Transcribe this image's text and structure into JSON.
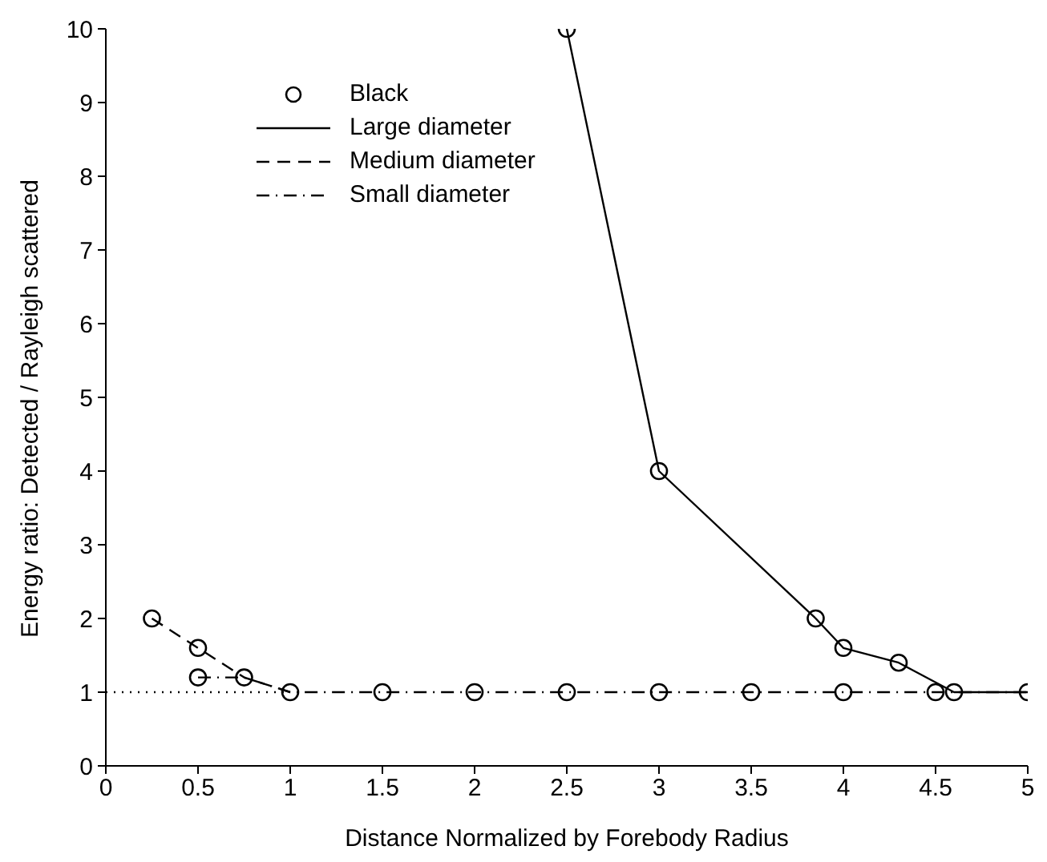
{
  "chart_data": {
    "type": "line",
    "xlabel": "Distance Normalized by Forebody Radius",
    "ylabel": "Energy ratio: Detected / Rayleigh scattered",
    "xlim": [
      0,
      5
    ],
    "ylim": [
      0,
      10
    ],
    "xticks": [
      0,
      0.5,
      1,
      1.5,
      2,
      2.5,
      3,
      3.5,
      4,
      4.5,
      5
    ],
    "yticks": [
      0,
      1,
      2,
      3,
      4,
      5,
      6,
      7,
      8,
      9,
      10
    ],
    "legend": "top left",
    "grid": false,
    "series": [
      {
        "name": "Black",
        "type": "scatter",
        "marker": "circle",
        "color": "#000000",
        "x": [
          0.25,
          0.5,
          0.5,
          0.75,
          1,
          1.5,
          2,
          2.5,
          3,
          3.5,
          4,
          4.5,
          4.6,
          5,
          2.5,
          3,
          3.85,
          4,
          4.3
        ],
        "values": [
          2,
          1.6,
          1.2,
          1.2,
          1,
          1,
          1,
          1,
          1,
          1,
          1,
          1,
          1,
          1,
          10,
          4,
          2,
          1.6,
          1.4
        ]
      },
      {
        "name": "Large diameter",
        "type": "line",
        "line_style": "solid",
        "color": "#000000",
        "x": [
          2.5,
          3,
          3.85,
          4,
          4.3,
          4.6,
          5
        ],
        "values": [
          10,
          4,
          2,
          1.6,
          1.4,
          1,
          1
        ]
      },
      {
        "name": "Medium diameter",
        "type": "line",
        "line_style": "dashed",
        "color": "#000000",
        "x": [
          0.25,
          0.5,
          0.75,
          1
        ],
        "values": [
          2,
          1.6,
          1.2,
          1
        ]
      },
      {
        "name": "Small diameter",
        "type": "line",
        "line_style": "dashdot",
        "color": "#000000",
        "x": [
          0.5,
          0.75,
          1,
          1.5,
          2,
          2.5,
          3,
          3.5,
          4,
          4.5,
          5
        ],
        "values": [
          1.2,
          1.2,
          1,
          1,
          1,
          1,
          1,
          1,
          1,
          1,
          1
        ]
      },
      {
        "type": "line",
        "line_style": "dotted",
        "color": "#000000",
        "x": [
          0,
          1
        ],
        "values": [
          1,
          1
        ]
      }
    ]
  }
}
